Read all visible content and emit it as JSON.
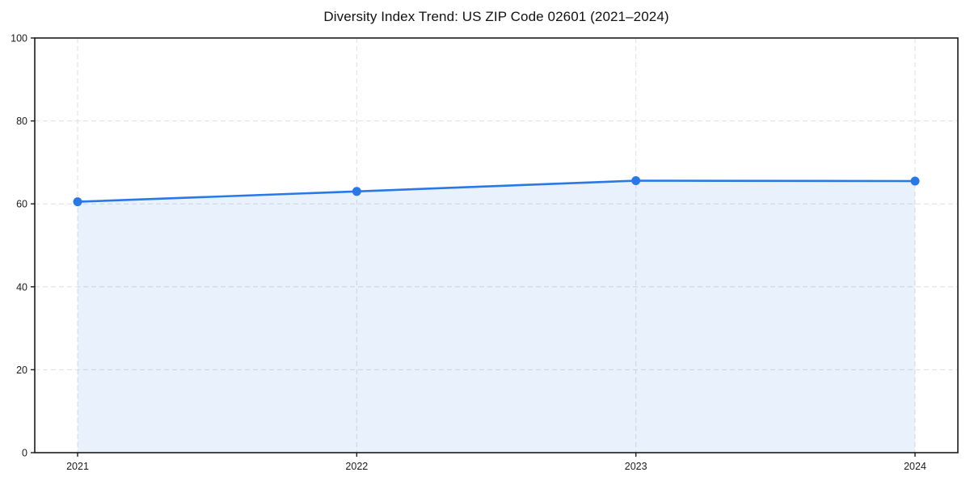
{
  "figure": {
    "background": "#ffffff"
  },
  "chart_data": {
    "type": "line",
    "title": "Diversity Index Trend: US ZIP Code 02601 (2021–2024)",
    "categories": [
      "2021",
      "2022",
      "2023",
      "2024"
    ],
    "values": [
      60.5,
      63.0,
      65.6,
      65.5
    ],
    "xlabel": "",
    "ylabel": "",
    "ylim": [
      0,
      100
    ],
    "yticks": [
      0,
      20,
      40,
      60,
      80,
      100
    ],
    "grid": true,
    "grid_style": "dashed",
    "legend_position": "none",
    "area_fill": true,
    "marker": "circle",
    "line_color": "#2878e8",
    "marker_color": "#2878e8",
    "fill_color": "rgba(40, 120, 232, 0.10)",
    "gridline_color": "#dedede",
    "axis_color": "#1a1a1a",
    "text_color": "#1a1a1a"
  }
}
